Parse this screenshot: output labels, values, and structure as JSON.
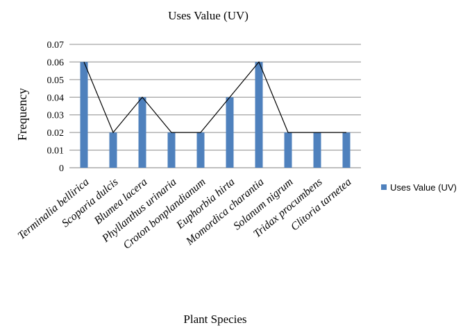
{
  "chart_data": {
    "type": "bar",
    "title": "Uses Value (UV)",
    "xlabel": "Plant Species",
    "ylabel": "Frequency",
    "categories": [
      "Terminalia bellirica",
      "Scoparia dulcis",
      "Blumea lacera",
      "Phyllanthus urinaria",
      "Croton bonplandianum",
      "Euphorbia hirta",
      "Momordica charantia",
      "Solanum nigrum",
      "Tridax procumbens",
      "Clitoria tarnetea"
    ],
    "series": [
      {
        "name": "Uses Value (UV)",
        "values": [
          0.06,
          0.02,
          0.04,
          0.02,
          0.02,
          0.04,
          0.06,
          0.02,
          0.02,
          0.02
        ],
        "color": "#4f81bd"
      }
    ],
    "overlay_line": {
      "values": [
        0.06,
        0.02,
        0.04,
        0.02,
        0.02,
        0.04,
        0.06,
        0.02,
        0.02,
        0.02
      ],
      "color": "#000000"
    },
    "ylim": [
      0,
      0.07
    ],
    "yticks": [
      "0",
      "0.01",
      "0.02",
      "0.03",
      "0.04",
      "0.05",
      "0.06",
      "0.07"
    ],
    "grid": true,
    "legend_position": "right"
  }
}
